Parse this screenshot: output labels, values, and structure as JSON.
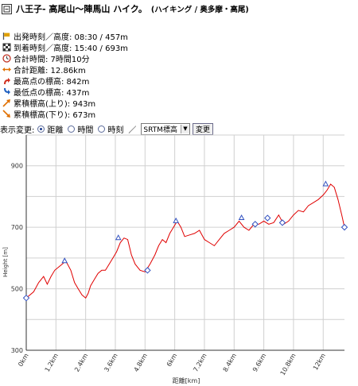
{
  "header": {
    "title": "八王子- 高尾山～陣馬山 ハイク。",
    "subtitle": "(ハイキング / 奥多摩・高尾)"
  },
  "stats": [
    {
      "icon": "start-flag-icon",
      "text": "出発時刻／高度: 08:30 / 457m"
    },
    {
      "icon": "goal-flag-icon",
      "text": "到着時刻／高度: 15:40 / 693m"
    },
    {
      "icon": "clock-icon",
      "text": "合計時間: 7時間10分"
    },
    {
      "icon": "distance-arrow-icon",
      "text": "合計距離: 12.86km"
    },
    {
      "icon": "arrow-up-icon",
      "text": "最高点の標高: 842m"
    },
    {
      "icon": "arrow-down-icon",
      "text": "最低点の標高: 437m"
    },
    {
      "icon": "ascent-icon",
      "text": "累積標高(上り): 943m"
    },
    {
      "icon": "descent-icon",
      "text": "累積標高(下り): 673m"
    }
  ],
  "controls": {
    "label": "表示変更:",
    "radios": [
      {
        "label": "距離",
        "checked": true
      },
      {
        "label": "時間",
        "checked": false
      },
      {
        "label": "時刻",
        "checked": false
      }
    ],
    "separator": "／",
    "select_value": "SRTM標高",
    "button_label": "変更"
  },
  "chart_data": {
    "type": "line",
    "xlabel": "距離[km]",
    "ylabel": "Height [m]",
    "xlim": [
      0,
      12.86
    ],
    "ylim": [
      300,
      1000
    ],
    "xticks": [
      "0km",
      "1.2km",
      "2.4km",
      "3.6km",
      "4.8km",
      "6km",
      "7.2km",
      "8.4km",
      "9.6km",
      "10.8km",
      "12km"
    ],
    "yticks": [
      "300",
      "500",
      "700",
      "900"
    ],
    "grid": true,
    "series": [
      {
        "x": [
          0,
          0.3,
          0.5,
          0.7,
          0.85,
          1.0,
          1.15,
          1.3,
          1.45,
          1.6,
          1.8,
          1.95,
          2.1,
          2.25,
          2.4,
          2.5,
          2.6,
          2.75,
          2.9,
          3.05,
          3.2,
          3.35,
          3.5,
          3.65,
          3.8,
          3.95,
          4.1,
          4.25,
          4.4,
          4.6,
          4.8,
          5.0,
          5.2,
          5.35,
          5.5,
          5.65,
          5.8,
          5.95,
          6.1,
          6.25,
          6.4,
          6.6,
          6.8,
          7.0,
          7.2,
          7.4,
          7.6,
          7.8,
          8.0,
          8.2,
          8.4,
          8.6,
          8.8,
          9.0,
          9.2,
          9.4,
          9.6,
          9.8,
          10.0,
          10.2,
          10.4,
          10.6,
          10.8,
          11.0,
          11.2,
          11.4,
          11.6,
          11.8,
          12.0,
          12.15,
          12.3,
          12.45,
          12.6,
          12.75,
          12.86
        ],
        "y": [
          470,
          490,
          520,
          540,
          515,
          540,
          560,
          570,
          580,
          590,
          560,
          520,
          500,
          480,
          470,
          485,
          510,
          530,
          550,
          560,
          560,
          580,
          600,
          620,
          650,
          665,
          660,
          610,
          580,
          560,
          555,
          580,
          610,
          640,
          660,
          650,
          680,
          700,
          720,
          700,
          670,
          675,
          680,
          690,
          660,
          650,
          640,
          660,
          680,
          690,
          700,
          720,
          700,
          690,
          710,
          710,
          720,
          710,
          715,
          740,
          710,
          720,
          740,
          755,
          750,
          770,
          780,
          790,
          805,
          820,
          840,
          830,
          790,
          740,
          700
        ]
      }
    ],
    "markers": {
      "triangles": [
        [
          1.55,
          590
        ],
        [
          3.72,
          665
        ],
        [
          6.05,
          720
        ],
        [
          8.7,
          730
        ],
        [
          12.1,
          840
        ]
      ],
      "diamonds": [
        [
          0,
          470
        ],
        [
          4.9,
          560
        ],
        [
          9.25,
          710
        ],
        [
          9.75,
          730
        ],
        [
          10.35,
          715
        ],
        [
          12.86,
          700
        ]
      ]
    }
  }
}
